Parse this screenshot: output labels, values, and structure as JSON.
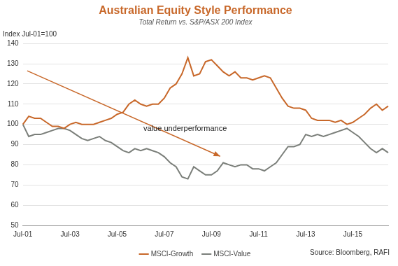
{
  "chart_data": {
    "type": "line",
    "title": "Australian Equity Style Performance",
    "subtitle": "Total Return vs. S&P/ASX 200 Index",
    "y_label": "Index Jul-01=100",
    "annotation": "value underperformance",
    "source": "Source: Bloomberg, RAFI",
    "categories": [
      "Jul-01",
      null,
      null,
      null,
      null,
      null,
      null,
      null,
      "Jul-03",
      null,
      null,
      null,
      null,
      null,
      null,
      null,
      "Jul-05",
      null,
      null,
      null,
      null,
      null,
      null,
      null,
      "Jul-07",
      null,
      null,
      null,
      null,
      null,
      null,
      null,
      "Jul-09",
      null,
      null,
      null,
      null,
      null,
      null,
      null,
      "Jul-11",
      null,
      null,
      null,
      null,
      null,
      null,
      null,
      "Jul-13",
      null,
      null,
      null,
      null,
      null,
      null,
      null,
      "Jul-15",
      null,
      null,
      null,
      null,
      null,
      null
    ],
    "series": [
      {
        "name": "MSCI-Growth",
        "color": "#c8682a",
        "values": [
          100,
          104,
          103,
          103,
          101,
          99,
          99,
          98,
          100,
          101,
          100,
          100,
          100,
          101,
          102,
          103,
          105,
          106,
          110,
          112,
          110,
          109,
          110,
          110,
          113,
          118,
          120,
          125,
          133,
          124,
          125,
          131,
          132,
          129,
          126,
          124,
          126,
          123,
          123,
          122,
          123,
          124,
          123,
          118,
          113,
          109,
          108,
          108,
          107,
          103,
          102,
          102,
          102,
          101,
          102,
          100,
          101,
          103,
          105,
          108,
          110,
          107,
          109
        ]
      },
      {
        "name": "MSCI-Value",
        "color": "#7b7f7a",
        "values": [
          100,
          94,
          95,
          95,
          96,
          97,
          98,
          98,
          97,
          95,
          93,
          92,
          93,
          94,
          92,
          91,
          89,
          87,
          86,
          88,
          87,
          88,
          87,
          86,
          84,
          81,
          79,
          74,
          73,
          79,
          77,
          75,
          75,
          77,
          81,
          80,
          79,
          80,
          80,
          78,
          78,
          77,
          79,
          81,
          85,
          89,
          89,
          90,
          95,
          94,
          95,
          94,
          95,
          96,
          97,
          98,
          96,
          94,
          91,
          88,
          86,
          88,
          86
        ]
      }
    ],
    "ylim": [
      50,
      140
    ],
    "yticks": [
      50,
      60,
      70,
      80,
      90,
      100,
      110,
      120,
      130,
      140
    ],
    "grid": true,
    "legend": "bottom"
  }
}
